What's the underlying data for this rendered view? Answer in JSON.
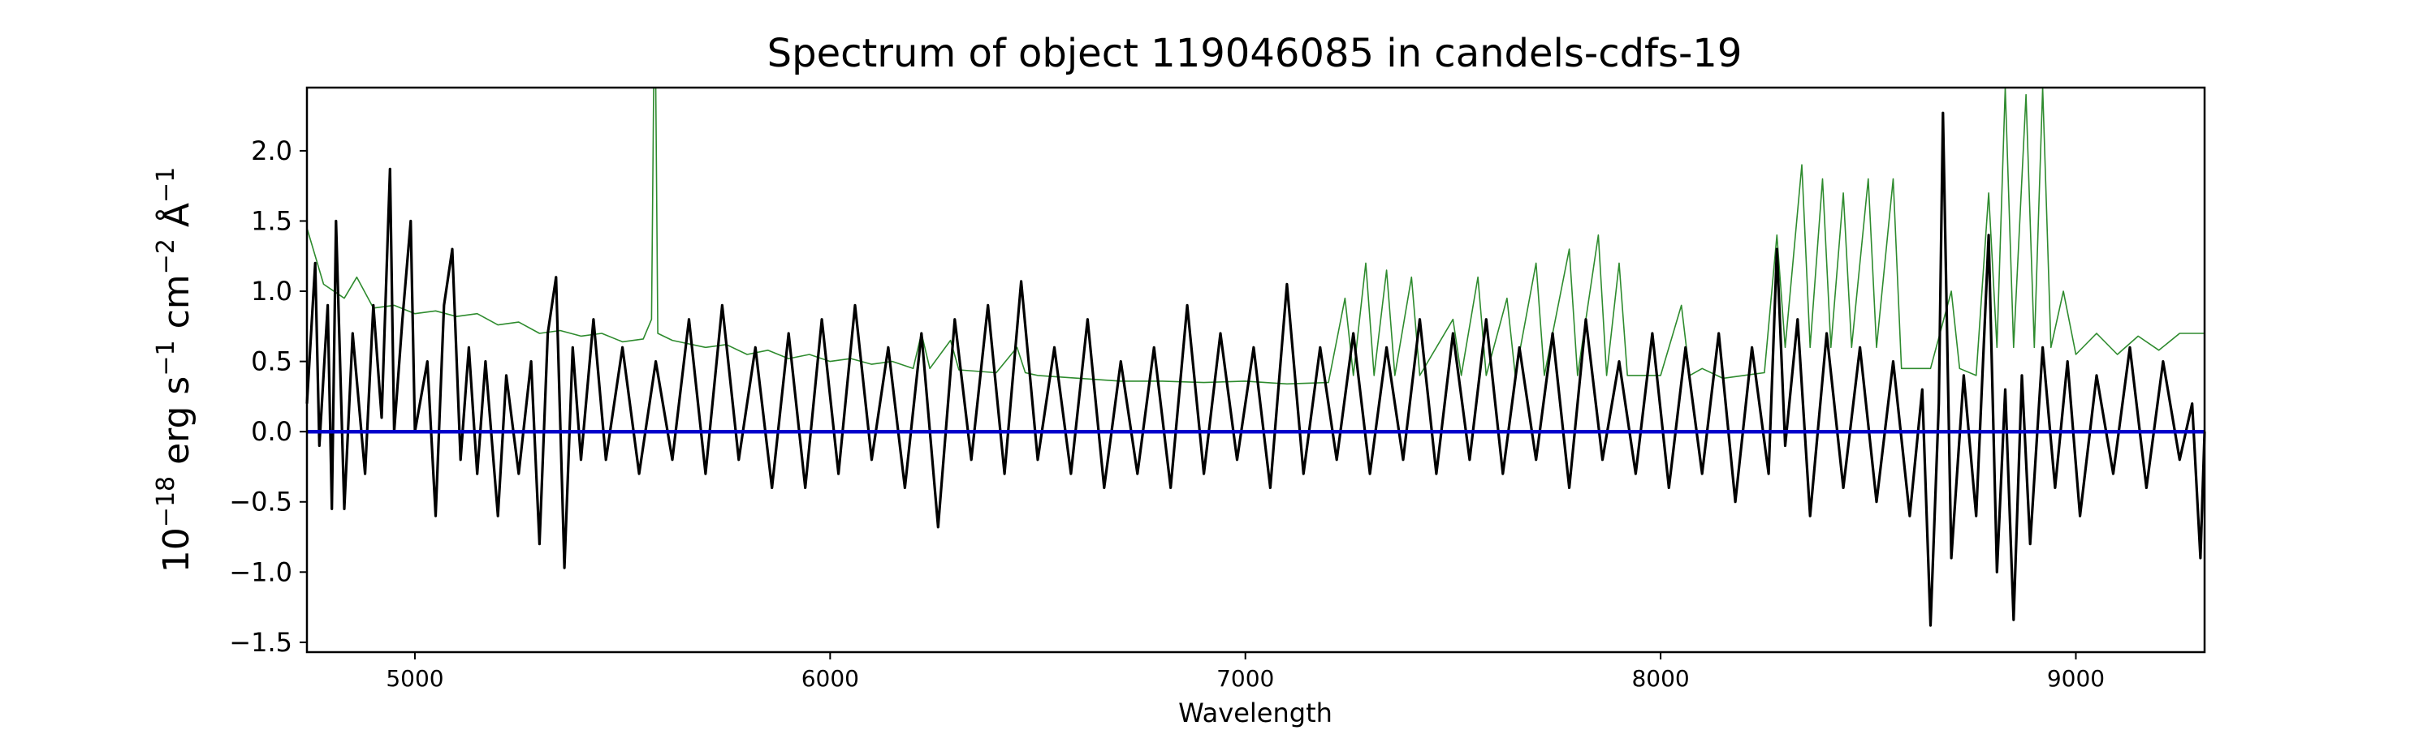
{
  "chart_data": {
    "type": "line",
    "title": "Spectrum of object 119046085 in candels-cdfs-19",
    "xlabel": "Wavelength",
    "ylabel_base": "10",
    "ylabel_exp": "−18",
    "ylabel_parts": [
      {
        "text": " erg s",
        "sup": "−1"
      },
      {
        "text": " cm",
        "sup": "−2"
      },
      {
        "text": " Å",
        "sup": "−1"
      }
    ],
    "xlim": [
      4740,
      9310
    ],
    "ylim": [
      -1.57,
      2.45
    ],
    "x_ticks": [
      5000,
      6000,
      7000,
      8000,
      9000
    ],
    "x_tick_labels": [
      "5000",
      "6000",
      "7000",
      "8000",
      "9000"
    ],
    "y_ticks": [
      -1.5,
      -1.0,
      -0.5,
      0.0,
      0.5,
      1.0,
      1.5,
      2.0
    ],
    "y_tick_labels": [
      "−1.5",
      "−1.0",
      "−0.5",
      "0.0",
      "0.5",
      "1.0",
      "1.5",
      "2.0"
    ],
    "grid": false,
    "colors": {
      "flux": "#000000",
      "error": "#2e8b2e",
      "zero": "#0000cc"
    },
    "series": [
      {
        "role": "error",
        "points": [
          [
            4740,
            1.45
          ],
          [
            4780,
            1.05
          ],
          [
            4830,
            0.95
          ],
          [
            4860,
            1.1
          ],
          [
            4900,
            0.88
          ],
          [
            4950,
            0.9
          ],
          [
            5000,
            0.84
          ],
          [
            5050,
            0.86
          ],
          [
            5100,
            0.82
          ],
          [
            5150,
            0.84
          ],
          [
            5200,
            0.76
          ],
          [
            5250,
            0.78
          ],
          [
            5300,
            0.7
          ],
          [
            5350,
            0.72
          ],
          [
            5400,
            0.68
          ],
          [
            5450,
            0.7
          ],
          [
            5500,
            0.64
          ],
          [
            5550,
            0.66
          ],
          [
            5570,
            0.8
          ],
          [
            5575,
            2.45
          ],
          [
            5580,
            2.45
          ],
          [
            5585,
            0.7
          ],
          [
            5620,
            0.65
          ],
          [
            5700,
            0.6
          ],
          [
            5750,
            0.62
          ],
          [
            5800,
            0.55
          ],
          [
            5850,
            0.58
          ],
          [
            5900,
            0.52
          ],
          [
            5950,
            0.55
          ],
          [
            6000,
            0.5
          ],
          [
            6050,
            0.52
          ],
          [
            6100,
            0.48
          ],
          [
            6150,
            0.5
          ],
          [
            6200,
            0.45
          ],
          [
            6220,
            0.7
          ],
          [
            6240,
            0.45
          ],
          [
            6290,
            0.65
          ],
          [
            6310,
            0.44
          ],
          [
            6400,
            0.42
          ],
          [
            6450,
            0.6
          ],
          [
            6470,
            0.42
          ],
          [
            6500,
            0.4
          ],
          [
            6600,
            0.38
          ],
          [
            6700,
            0.36
          ],
          [
            6800,
            0.36
          ],
          [
            6900,
            0.35
          ],
          [
            7000,
            0.36
          ],
          [
            7100,
            0.34
          ],
          [
            7200,
            0.35
          ],
          [
            7240,
            0.95
          ],
          [
            7260,
            0.4
          ],
          [
            7290,
            1.2
          ],
          [
            7310,
            0.4
          ],
          [
            7340,
            1.15
          ],
          [
            7360,
            0.4
          ],
          [
            7400,
            1.1
          ],
          [
            7420,
            0.4
          ],
          [
            7500,
            0.8
          ],
          [
            7520,
            0.4
          ],
          [
            7560,
            1.1
          ],
          [
            7580,
            0.4
          ],
          [
            7630,
            0.95
          ],
          [
            7650,
            0.4
          ],
          [
            7700,
            1.2
          ],
          [
            7720,
            0.4
          ],
          [
            7780,
            1.3
          ],
          [
            7800,
            0.4
          ],
          [
            7850,
            1.4
          ],
          [
            7870,
            0.4
          ],
          [
            7900,
            1.2
          ],
          [
            7920,
            0.4
          ],
          [
            8000,
            0.4
          ],
          [
            8050,
            0.9
          ],
          [
            8070,
            0.4
          ],
          [
            8100,
            0.45
          ],
          [
            8150,
            0.38
          ],
          [
            8200,
            0.4
          ],
          [
            8250,
            0.42
          ],
          [
            8280,
            1.4
          ],
          [
            8300,
            0.6
          ],
          [
            8340,
            1.9
          ],
          [
            8360,
            0.6
          ],
          [
            8390,
            1.8
          ],
          [
            8410,
            0.6
          ],
          [
            8440,
            1.7
          ],
          [
            8460,
            0.6
          ],
          [
            8500,
            1.8
          ],
          [
            8520,
            0.6
          ],
          [
            8560,
            1.8
          ],
          [
            8580,
            0.45
          ],
          [
            8650,
            0.45
          ],
          [
            8700,
            1.0
          ],
          [
            8720,
            0.45
          ],
          [
            8760,
            0.4
          ],
          [
            8790,
            1.7
          ],
          [
            8810,
            0.6
          ],
          [
            8830,
            2.45
          ],
          [
            8850,
            0.6
          ],
          [
            8880,
            2.4
          ],
          [
            8900,
            0.6
          ],
          [
            8920,
            2.45
          ],
          [
            8940,
            0.6
          ],
          [
            8970,
            1.0
          ],
          [
            9000,
            0.55
          ],
          [
            9050,
            0.7
          ],
          [
            9100,
            0.55
          ],
          [
            9150,
            0.68
          ],
          [
            9200,
            0.58
          ],
          [
            9250,
            0.7
          ],
          [
            9310,
            0.7
          ]
        ]
      },
      {
        "role": "flux",
        "points": [
          [
            4740,
            0.2
          ],
          [
            4760,
            1.2
          ],
          [
            4770,
            -0.1
          ],
          [
            4790,
            0.9
          ],
          [
            4800,
            -0.55
          ],
          [
            4810,
            1.5
          ],
          [
            4830,
            -0.55
          ],
          [
            4850,
            0.7
          ],
          [
            4880,
            -0.3
          ],
          [
            4900,
            0.9
          ],
          [
            4920,
            0.1
          ],
          [
            4940,
            1.87
          ],
          [
            4950,
            0.0
          ],
          [
            4970,
            0.8
          ],
          [
            4990,
            1.5
          ],
          [
            5000,
            0.0
          ],
          [
            5030,
            0.5
          ],
          [
            5050,
            -0.6
          ],
          [
            5070,
            0.9
          ],
          [
            5090,
            1.3
          ],
          [
            5110,
            -0.2
          ],
          [
            5130,
            0.6
          ],
          [
            5150,
            -0.3
          ],
          [
            5170,
            0.5
          ],
          [
            5200,
            -0.6
          ],
          [
            5220,
            0.4
          ],
          [
            5250,
            -0.3
          ],
          [
            5280,
            0.5
          ],
          [
            5300,
            -0.8
          ],
          [
            5320,
            0.7
          ],
          [
            5340,
            1.1
          ],
          [
            5360,
            -0.97
          ],
          [
            5380,
            0.6
          ],
          [
            5400,
            -0.2
          ],
          [
            5430,
            0.8
          ],
          [
            5460,
            -0.2
          ],
          [
            5500,
            0.6
          ],
          [
            5540,
            -0.3
          ],
          [
            5580,
            0.5
          ],
          [
            5620,
            -0.2
          ],
          [
            5660,
            0.8
          ],
          [
            5700,
            -0.3
          ],
          [
            5740,
            0.9
          ],
          [
            5780,
            -0.2
          ],
          [
            5820,
            0.6
          ],
          [
            5860,
            -0.4
          ],
          [
            5900,
            0.7
          ],
          [
            5940,
            -0.4
          ],
          [
            5980,
            0.8
          ],
          [
            6020,
            -0.3
          ],
          [
            6060,
            0.9
          ],
          [
            6100,
            -0.2
          ],
          [
            6140,
            0.6
          ],
          [
            6180,
            -0.4
          ],
          [
            6220,
            0.7
          ],
          [
            6260,
            -0.68
          ],
          [
            6300,
            0.8
          ],
          [
            6340,
            -0.2
          ],
          [
            6380,
            0.9
          ],
          [
            6420,
            -0.3
          ],
          [
            6460,
            1.07
          ],
          [
            6500,
            -0.2
          ],
          [
            6540,
            0.6
          ],
          [
            6580,
            -0.3
          ],
          [
            6620,
            0.8
          ],
          [
            6660,
            -0.4
          ],
          [
            6700,
            0.5
          ],
          [
            6740,
            -0.3
          ],
          [
            6780,
            0.6
          ],
          [
            6820,
            -0.4
          ],
          [
            6860,
            0.9
          ],
          [
            6900,
            -0.3
          ],
          [
            6940,
            0.7
          ],
          [
            6980,
            -0.2
          ],
          [
            7020,
            0.6
          ],
          [
            7060,
            -0.4
          ],
          [
            7100,
            1.05
          ],
          [
            7140,
            -0.3
          ],
          [
            7180,
            0.6
          ],
          [
            7220,
            -0.2
          ],
          [
            7260,
            0.7
          ],
          [
            7300,
            -0.3
          ],
          [
            7340,
            0.6
          ],
          [
            7380,
            -0.2
          ],
          [
            7420,
            0.8
          ],
          [
            7460,
            -0.3
          ],
          [
            7500,
            0.7
          ],
          [
            7540,
            -0.2
          ],
          [
            7580,
            0.8
          ],
          [
            7620,
            -0.3
          ],
          [
            7660,
            0.6
          ],
          [
            7700,
            -0.2
          ],
          [
            7740,
            0.7
          ],
          [
            7780,
            -0.4
          ],
          [
            7820,
            0.8
          ],
          [
            7860,
            -0.2
          ],
          [
            7900,
            0.5
          ],
          [
            7940,
            -0.3
          ],
          [
            7980,
            0.7
          ],
          [
            8020,
            -0.4
          ],
          [
            8060,
            0.6
          ],
          [
            8100,
            -0.3
          ],
          [
            8140,
            0.7
          ],
          [
            8180,
            -0.5
          ],
          [
            8220,
            0.6
          ],
          [
            8260,
            -0.3
          ],
          [
            8280,
            1.3
          ],
          [
            8300,
            -0.1
          ],
          [
            8330,
            0.8
          ],
          [
            8360,
            -0.6
          ],
          [
            8400,
            0.7
          ],
          [
            8440,
            -0.4
          ],
          [
            8480,
            0.6
          ],
          [
            8520,
            -0.5
          ],
          [
            8560,
            0.5
          ],
          [
            8600,
            -0.6
          ],
          [
            8630,
            0.3
          ],
          [
            8650,
            -1.38
          ],
          [
            8670,
            0.2
          ],
          [
            8680,
            2.27
          ],
          [
            8700,
            -0.9
          ],
          [
            8730,
            0.4
          ],
          [
            8760,
            -0.6
          ],
          [
            8790,
            1.4
          ],
          [
            8810,
            -1.0
          ],
          [
            8830,
            0.3
          ],
          [
            8850,
            -1.34
          ],
          [
            8870,
            0.4
          ],
          [
            8890,
            -0.8
          ],
          [
            8920,
            0.6
          ],
          [
            8950,
            -0.4
          ],
          [
            8980,
            0.5
          ],
          [
            9010,
            -0.6
          ],
          [
            9050,
            0.4
          ],
          [
            9090,
            -0.3
          ],
          [
            9130,
            0.6
          ],
          [
            9170,
            -0.4
          ],
          [
            9210,
            0.5
          ],
          [
            9250,
            -0.2
          ],
          [
            9280,
            0.2
          ],
          [
            9300,
            -0.9
          ],
          [
            9310,
            0.0
          ]
        ]
      },
      {
        "role": "zero",
        "points": [
          [
            4740,
            0.0
          ],
          [
            9310,
            0.0
          ]
        ]
      }
    ]
  }
}
